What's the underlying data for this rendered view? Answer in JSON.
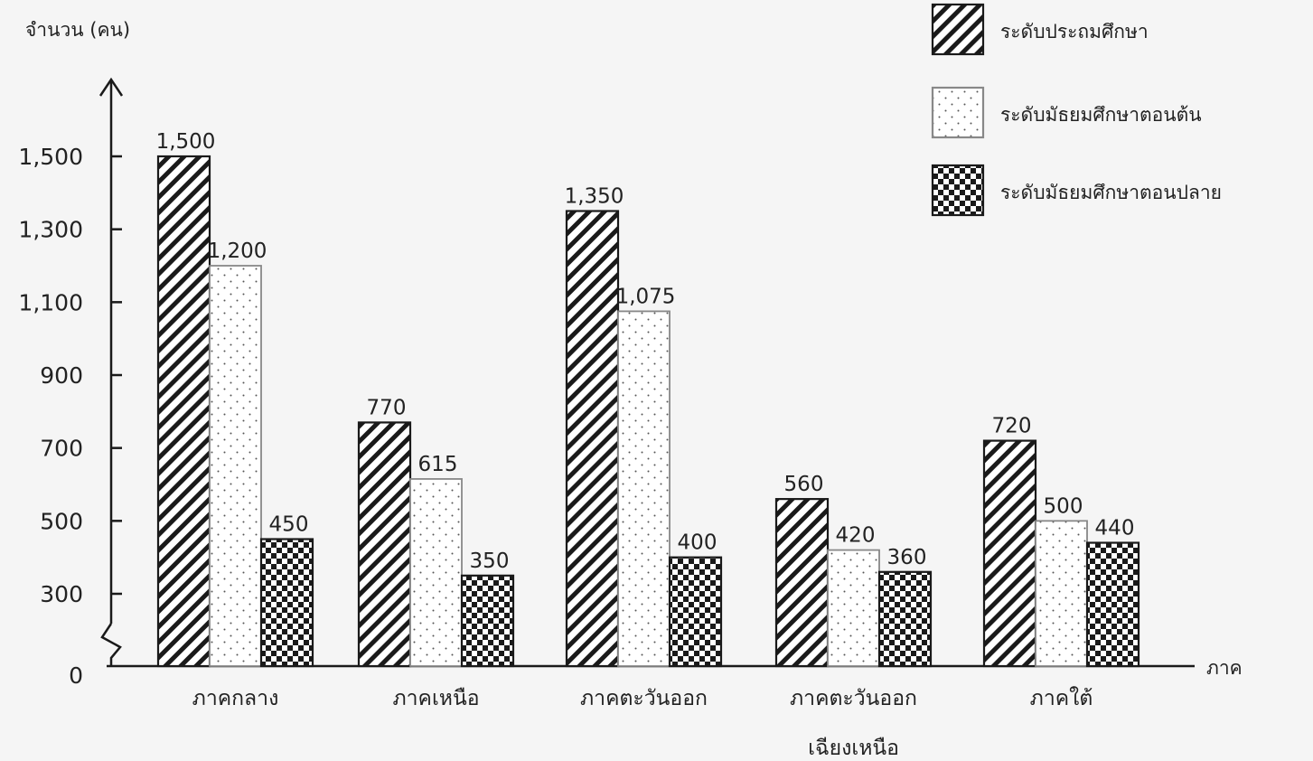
{
  "chart_data": {
    "type": "bar",
    "ylabel": "จำนวน (คน)",
    "xlabel": "ภาค",
    "categories": [
      [
        "ภาคกลาง"
      ],
      [
        "ภาคเหนือ"
      ],
      [
        "ภาคตะวันออก"
      ],
      [
        "ภาคตะวันออก",
        "เฉียงเหนือ"
      ],
      [
        "ภาคใต้"
      ]
    ],
    "series": [
      {
        "name": "ระดับประถมศึกษา",
        "pattern": "diagonal-hatch",
        "values": [
          1500,
          770,
          1350,
          560,
          720
        ]
      },
      {
        "name": "ระดับมัธยมศึกษาตอนต้น",
        "pattern": "dots",
        "values": [
          1200,
          615,
          1075,
          420,
          500
        ]
      },
      {
        "name": "ระดับมัธยมศึกษาตอนปลาย",
        "pattern": "checker",
        "values": [
          450,
          350,
          400,
          360,
          440
        ]
      }
    ],
    "data_labels": [
      [
        "1,500",
        "770",
        "1,350",
        "560",
        "720"
      ],
      [
        "1,200",
        "615",
        "1,075",
        "420",
        "500"
      ],
      [
        "450",
        "350",
        "400",
        "360",
        "440"
      ]
    ],
    "y_ticks": [
      0,
      300,
      500,
      700,
      900,
      1100,
      1300,
      1500
    ],
    "y_tick_labels": [
      "0",
      "300",
      "500",
      "700",
      "900",
      "1,100",
      "1,300",
      "1,500"
    ],
    "axis_break": true,
    "grid": false,
    "legend_position": "top-right",
    "colors": {
      "bar_fill": "#ffffff",
      "ink": "#1a1a1a",
      "background": "#f5f5f5"
    }
  }
}
